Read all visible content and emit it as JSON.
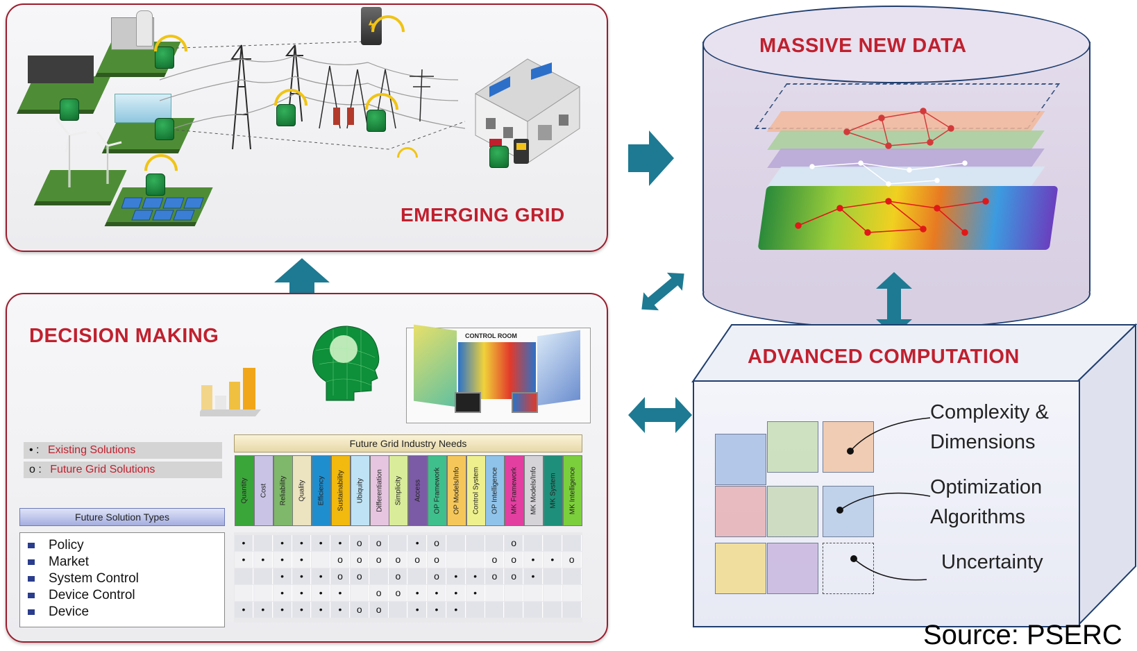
{
  "panels": {
    "emerging_grid": {
      "title": "EMERGING GRID"
    },
    "massive_data": {
      "title": "MASSIVE NEW DATA"
    },
    "advanced_computation": {
      "title": "ADVANCED COMPUTATION",
      "labels": [
        "Complexity &",
        "Dimensions",
        "Optimization",
        "Algorithms",
        "Uncertainty"
      ]
    },
    "decision_making": {
      "title": "DECISION MAKING",
      "control_room": "CONTROL ROOM",
      "legend": {
        "existing": {
          "symbol": "• :",
          "text": "Existing Solutions"
        },
        "future": {
          "symbol": "o :",
          "text": "Future Grid Solutions"
        }
      },
      "needs_header": "Future Grid Industry Needs",
      "types_header": "Future Solution Types",
      "needs": [
        "Quantity",
        "Cost",
        "Reliability",
        "Quality",
        "Efficiency",
        "Sustainability",
        "Ubiquity",
        "Differentiation",
        "Simplicity",
        "Access",
        "OP Framework",
        "OP Models/Info",
        "Control System",
        "OP Intelligence",
        "MK Framework",
        "MK Models/Info",
        "MK System",
        "MK Intelligence"
      ],
      "need_colors": [
        "#3aa63a",
        "#c9c4e6",
        "#7fb86a",
        "#ece3c0",
        "#1f8ecf",
        "#f2b90e",
        "#bfe3f5",
        "#e6c5e0",
        "#d9ec9a",
        "#7b5aa6",
        "#3fbf8c",
        "#f5c75a",
        "#eef08e",
        "#8fc3ea",
        "#e23fa0",
        "#d5d3d8",
        "#1e8f7a",
        "#7ccf3c"
      ],
      "types": [
        "Policy",
        "Market",
        "System Control",
        "Device Control",
        "Device"
      ],
      "matrix": [
        [
          "•",
          "",
          "•",
          "•",
          "•",
          "•",
          "o",
          "o",
          "",
          "•",
          "o",
          "",
          "",
          "",
          "o",
          "",
          "",
          ""
        ],
        [
          "•",
          "•",
          "•",
          "•",
          "",
          "o",
          "o",
          "o",
          "o",
          "o",
          "o",
          "",
          "",
          "o",
          "o",
          "•",
          "•",
          "o"
        ],
        [
          "",
          "",
          "•",
          "•",
          "•",
          "o",
          "o",
          "",
          "o",
          "",
          "o",
          "•",
          "•",
          "o",
          "o",
          "•",
          "",
          ""
        ],
        [
          "",
          "",
          "•",
          "•",
          "•",
          "•",
          "",
          "o",
          "o",
          "•",
          "•",
          "•",
          "•",
          "",
          "",
          "",
          "",
          ""
        ],
        [
          "•",
          "•",
          "•",
          "•",
          "•",
          "•",
          "o",
          "o",
          "",
          "•",
          "•",
          "•",
          "",
          "",
          "",
          "",
          "",
          ""
        ]
      ]
    }
  },
  "source": "Source: PSERC",
  "colors": {
    "title_red": "#c0202e",
    "arrow_teal": "#1d7a92",
    "frame_navy": "#1f3e6e"
  }
}
